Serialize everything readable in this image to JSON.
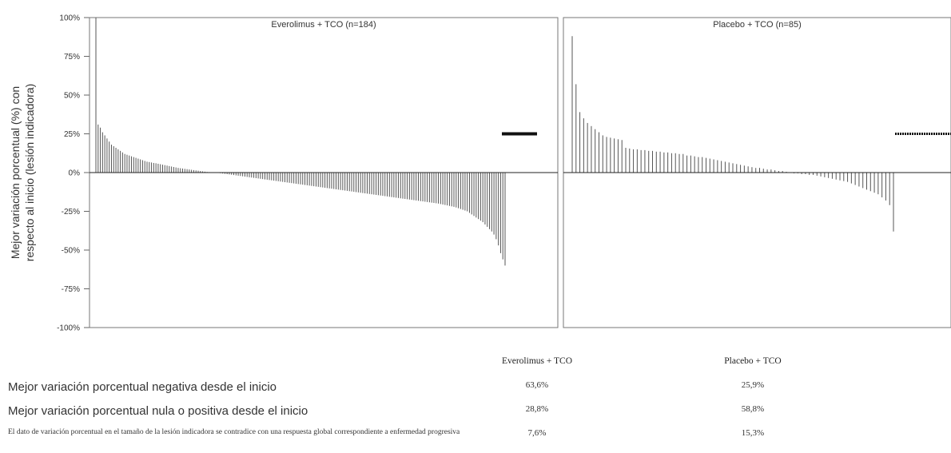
{
  "chart_data": {
    "type": "bar",
    "ylabel_line1": "Mejor variación porcentual (%) con",
    "ylabel_line2": "respecto al inicio (lesión indicadora)",
    "ylim": [
      -100,
      100
    ],
    "yticks": [
      "100%",
      "75%",
      "50%",
      "25%",
      "0%",
      "-25%",
      "-50%",
      "-75%",
      "-100%"
    ],
    "grid": false,
    "panels": [
      {
        "title": "Everolimus + TCO (n=184)",
        "count": 184,
        "values": [
          100,
          31,
          29,
          26,
          24,
          22,
          20,
          18,
          17,
          16,
          15,
          14,
          13,
          12,
          11.5,
          11,
          10.5,
          10,
          9.5,
          9,
          8.5,
          8,
          7.5,
          7,
          6.8,
          6.5,
          6.2,
          6,
          5.7,
          5.4,
          5.1,
          4.8,
          4.5,
          4.2,
          3.9,
          3.6,
          3.3,
          3,
          2.8,
          2.6,
          2.4,
          2.2,
          2,
          1.8,
          1.6,
          1.4,
          1.2,
          1,
          0.8,
          0.6,
          0.4,
          0.3,
          0.2,
          0.1,
          0,
          -0.2,
          -0.4,
          -0.6,
          -0.8,
          -1,
          -1.2,
          -1.4,
          -1.6,
          -1.8,
          -2,
          -2.2,
          -2.4,
          -2.6,
          -2.8,
          -3,
          -3.2,
          -3.4,
          -3.6,
          -3.8,
          -4,
          -4.2,
          -4.4,
          -4.6,
          -4.8,
          -5,
          -5.2,
          -5.4,
          -5.6,
          -5.8,
          -6,
          -6.2,
          -6.4,
          -6.6,
          -6.8,
          -7,
          -7.2,
          -7.4,
          -7.6,
          -7.8,
          -8,
          -8.2,
          -8.4,
          -8.6,
          -8.8,
          -9,
          -9.2,
          -9.4,
          -9.6,
          -9.8,
          -10,
          -10.2,
          -10.4,
          -10.6,
          -10.8,
          -11,
          -11.2,
          -11.4,
          -11.6,
          -11.8,
          -12,
          -12.2,
          -12.4,
          -12.6,
          -12.8,
          -13,
          -13.2,
          -13.4,
          -13.6,
          -13.8,
          -14,
          -14.2,
          -14.4,
          -14.6,
          -14.8,
          -15,
          -15.2,
          -15.4,
          -15.6,
          -15.8,
          -16,
          -16.2,
          -16.4,
          -16.6,
          -16.8,
          -17,
          -17.2,
          -17.4,
          -17.6,
          -17.8,
          -18,
          -18.2,
          -18.4,
          -18.6,
          -18.8,
          -19,
          -19.2,
          -19.4,
          -19.6,
          -19.8,
          -20,
          -20.3,
          -20.6,
          -20.9,
          -21.2,
          -21.5,
          -21.8,
          -22.1,
          -22.5,
          -23,
          -23.5,
          -24,
          -24.5,
          -25,
          -26,
          -27,
          -28,
          -29,
          -30,
          -31,
          -32,
          -33.5,
          -35,
          -36.5,
          -38,
          -40,
          -43,
          -47,
          -52,
          -56,
          -60
        ],
        "marker_value": 25
      },
      {
        "title": "Placebo + TCO (n=85)",
        "count": 85,
        "values": [
          88,
          57,
          39,
          35,
          32,
          30,
          28,
          26,
          24,
          23,
          22.5,
          22,
          21.5,
          21,
          16,
          15.5,
          15,
          15,
          14.5,
          14.5,
          14,
          14,
          13.5,
          13.5,
          13,
          13,
          12.5,
          12.5,
          12,
          12,
          11,
          11,
          10.5,
          10,
          10,
          9.5,
          9,
          8.5,
          8,
          7.5,
          7,
          6.5,
          6,
          5.5,
          5,
          4.5,
          4,
          3.5,
          3,
          3,
          2.5,
          2,
          2,
          1.5,
          1,
          1,
          0.5,
          0,
          -0.5,
          -0.5,
          -1,
          -1,
          -1.5,
          -1.5,
          -2,
          -2.5,
          -3,
          -3.5,
          -4,
          -4.5,
          -5,
          -5.5,
          -6,
          -7,
          -8,
          -9,
          -10,
          -11,
          -12,
          -13,
          -14,
          -16,
          -18,
          -21,
          -38
        ],
        "marker_value": 25
      }
    ]
  },
  "summary": {
    "col_headers": [
      "Everolimus + TCO",
      "Placebo + TCO"
    ],
    "rows": [
      {
        "label": "Mejor variación porcentual negativa desde el inicio",
        "values": [
          "63,6%",
          "25,9%"
        ]
      },
      {
        "label": "Mejor variación porcentual nula o positiva desde el inicio",
        "values": [
          "28,8%",
          "58,8%"
        ]
      },
      {
        "label": "El dato de variación porcentual en el tamaño de la lesión indicadora se contradice con una respuesta global correspondiente a enfermedad progresiva",
        "values": [
          "7,6%",
          "15,3%"
        ]
      }
    ]
  }
}
